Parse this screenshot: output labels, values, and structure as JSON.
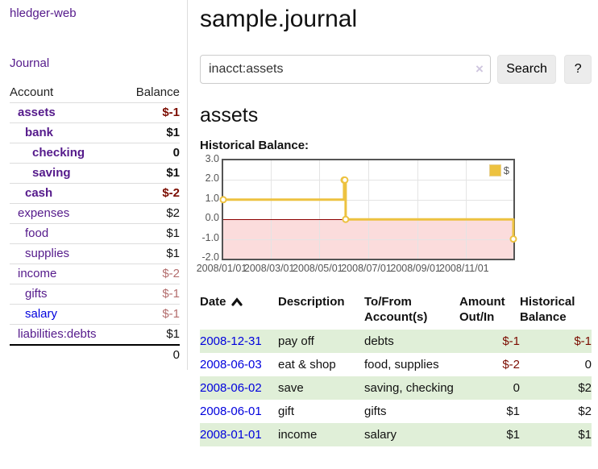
{
  "sidebar": {
    "brand": "hledger-web",
    "nav": {
      "journal": "Journal"
    },
    "table": {
      "headers": {
        "account": "Account",
        "balance": "Balance"
      },
      "accounts": [
        {
          "name": "assets",
          "balance": "$-1",
          "indent": 1,
          "bold": true,
          "balance_style": "neg-strong"
        },
        {
          "name": "bank",
          "balance": "$1",
          "indent": 2,
          "bold": true,
          "balance_style": "pos"
        },
        {
          "name": "checking",
          "balance": "0",
          "indent": 3,
          "bold": true,
          "balance_style": "pos"
        },
        {
          "name": "saving",
          "balance": "$1",
          "indent": 3,
          "bold": true,
          "balance_style": "pos"
        },
        {
          "name": "cash",
          "balance": "$-2",
          "indent": 2,
          "bold": true,
          "balance_style": "neg-strong"
        },
        {
          "name": "expenses",
          "balance": "$2",
          "indent": 1,
          "bold": false,
          "balance_style": "pos"
        },
        {
          "name": "food",
          "balance": "$1",
          "indent": 2,
          "bold": false,
          "balance_style": "pos"
        },
        {
          "name": "supplies",
          "balance": "$1",
          "indent": 2,
          "bold": false,
          "balance_style": "pos"
        },
        {
          "name": "income",
          "balance": "$-2",
          "indent": 1,
          "bold": false,
          "balance_style": "neg-light"
        },
        {
          "name": "gifts",
          "balance": "$-1",
          "indent": 2,
          "bold": false,
          "balance_style": "neg-light"
        },
        {
          "name": "salary",
          "balance": "$-1",
          "indent": 2,
          "bold": false,
          "balance_style": "neg-light",
          "link_style": "new"
        },
        {
          "name": "liabilities:debts",
          "balance": "$1",
          "indent": 1,
          "bold": false,
          "balance_style": "pos"
        }
      ],
      "total": "0"
    }
  },
  "header": {
    "title": "sample.journal"
  },
  "search": {
    "query": "inacct:assets",
    "clear_label": "×",
    "button": "Search",
    "help_button": "?"
  },
  "account_page": {
    "title": "assets",
    "chart_label": "Historical Balance:"
  },
  "chart_data": {
    "type": "line",
    "step": true,
    "title": "Historical Balance",
    "x_range": [
      "2008-01-01",
      "2008-12-31"
    ],
    "ylim": [
      -2,
      3
    ],
    "yticks": [
      {
        "label": "3.0",
        "value": 3
      },
      {
        "label": "2.0",
        "value": 2
      },
      {
        "label": "1.0",
        "value": 1
      },
      {
        "label": "0.0",
        "value": 0
      },
      {
        "label": "-1.0",
        "value": -1
      },
      {
        "label": "-2.0",
        "value": -2
      }
    ],
    "xticks": [
      {
        "label": "2008/01/01",
        "date": "2008-01-01"
      },
      {
        "label": "2008/03/01",
        "date": "2008-03-01"
      },
      {
        "label": "2008/05/01",
        "date": "2008-05-01"
      },
      {
        "label": "2008/07/01",
        "date": "2008-07-01"
      },
      {
        "label": "2008/09/01",
        "date": "2008-09-01"
      },
      {
        "label": "2008/11/01",
        "date": "2008-11-01"
      }
    ],
    "series": [
      {
        "name": "$",
        "color": "#edc240",
        "points": [
          {
            "date": "2008-01-01",
            "value": 1
          },
          {
            "date": "2008-06-01",
            "value": 2
          },
          {
            "date": "2008-06-02",
            "value": 2
          },
          {
            "date": "2008-06-03",
            "value": 0
          },
          {
            "date": "2008-12-31",
            "value": -1
          }
        ]
      }
    ],
    "legend": [
      {
        "label": "$",
        "color": "#edc240"
      }
    ],
    "legend_position": "top-right",
    "grid": true,
    "negative_region_color": "#fbdcdc",
    "zero_line_color": "#8b0000"
  },
  "register": {
    "headers": {
      "date": "Date",
      "description": "Description",
      "tofrom": "To/From Account(s)",
      "amount": "Amount Out/In",
      "balance": "Historical Balance"
    },
    "rows": [
      {
        "date": "2008-12-31",
        "description": "pay off",
        "accounts": "debts",
        "amount": "$-1",
        "amount_neg": true,
        "balance": "$-1",
        "balance_neg": true,
        "shaded": true
      },
      {
        "date": "2008-06-03",
        "description": "eat & shop",
        "accounts": "food, supplies",
        "amount": "$-2",
        "amount_neg": true,
        "balance": "0",
        "balance_neg": false,
        "shaded": false
      },
      {
        "date": "2008-06-02",
        "description": "save",
        "accounts": "saving, checking",
        "amount": "0",
        "amount_neg": false,
        "balance": "$2",
        "balance_neg": false,
        "shaded": true
      },
      {
        "date": "2008-06-01",
        "description": "gift",
        "accounts": "gifts",
        "amount": "$1",
        "amount_neg": false,
        "balance": "$2",
        "balance_neg": false,
        "shaded": false
      },
      {
        "date": "2008-01-01",
        "description": "income",
        "accounts": "salary",
        "amount": "$1",
        "amount_neg": false,
        "balance": "$1",
        "balance_neg": false,
        "shaded": true
      }
    ]
  },
  "colors": {
    "link_purple": "#551a8b",
    "link_blue": "#0000dd",
    "negative_strong": "#7b0c00",
    "negative_light": "#b36d6d",
    "row_shade_green": "#e0efd8",
    "chart_line": "#edc240"
  }
}
